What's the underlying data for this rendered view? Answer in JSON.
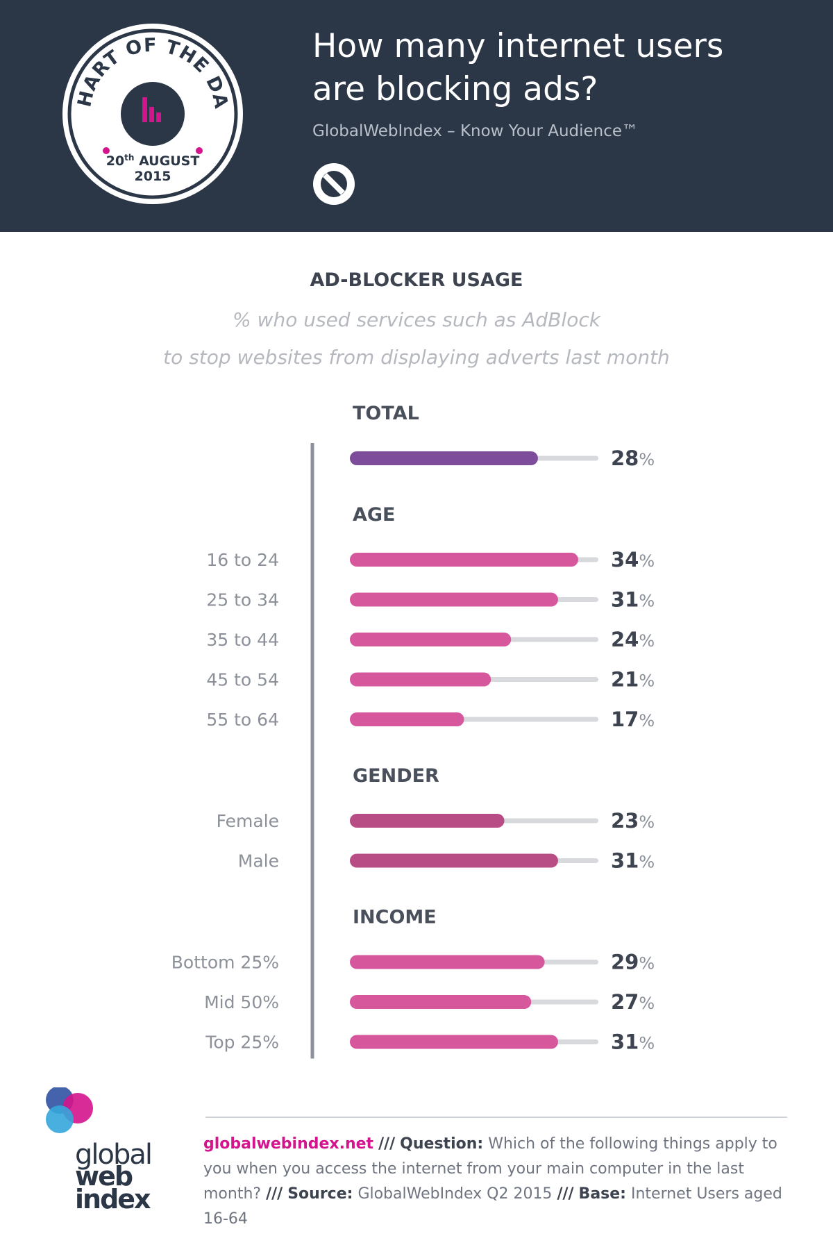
{
  "header": {
    "title_line1": "How many internet users",
    "title_line2": "are blocking ads?",
    "subtitle": "GlobalWebIndex – Know Your Audience™",
    "badge": {
      "arc_text": "CHART OF THE DAY",
      "day": "20",
      "day_suffix": "th",
      "month": "AUGUST",
      "year": "2015"
    },
    "icon": "no-entry-icon"
  },
  "chart_heading": {
    "title": "AD-BLOCKER USAGE",
    "subtitle_line1": "% who used services such as AdBlock",
    "subtitle_line2": "to stop websites from displaying adverts last month"
  },
  "chart_data": {
    "type": "bar",
    "orientation": "horizontal",
    "unit": "%",
    "xlim": [
      0,
      37
    ],
    "groups": [
      {
        "name": "TOTAL",
        "color": "#7d4d9b",
        "rows": [
          {
            "label": "",
            "value": 28
          }
        ]
      },
      {
        "name": "AGE",
        "color": "#d6579c",
        "rows": [
          {
            "label": "16 to 24",
            "value": 34
          },
          {
            "label": "25 to 34",
            "value": 31
          },
          {
            "label": "35 to 44",
            "value": 24
          },
          {
            "label": "45 to 54",
            "value": 21
          },
          {
            "label": "55 to 64",
            "value": 17
          }
        ]
      },
      {
        "name": "GENDER",
        "color": "#b84d86",
        "rows": [
          {
            "label": "Female",
            "value": 23
          },
          {
            "label": "Male",
            "value": 31
          }
        ]
      },
      {
        "name": "INCOME",
        "color": "#d6579c",
        "rows": [
          {
            "label": "Bottom 25%",
            "value": 29
          },
          {
            "label": "Mid 50%",
            "value": 27
          },
          {
            "label": "Top 25%",
            "value": 31
          }
        ]
      }
    ],
    "track_color": "#d7d9dd"
  },
  "footer": {
    "logo_lines": [
      "global",
      "web",
      "index"
    ],
    "site": "globalwebindex.net",
    "separator": "///",
    "question_label": "Question:",
    "question": "Which of the following things apply to you when you access the internet from your main computer in the last month?",
    "source_label": "Source:",
    "source": "GlobalWebIndex Q2 2015",
    "base_label": "Base:",
    "base": "Internet Users aged 16-64"
  }
}
